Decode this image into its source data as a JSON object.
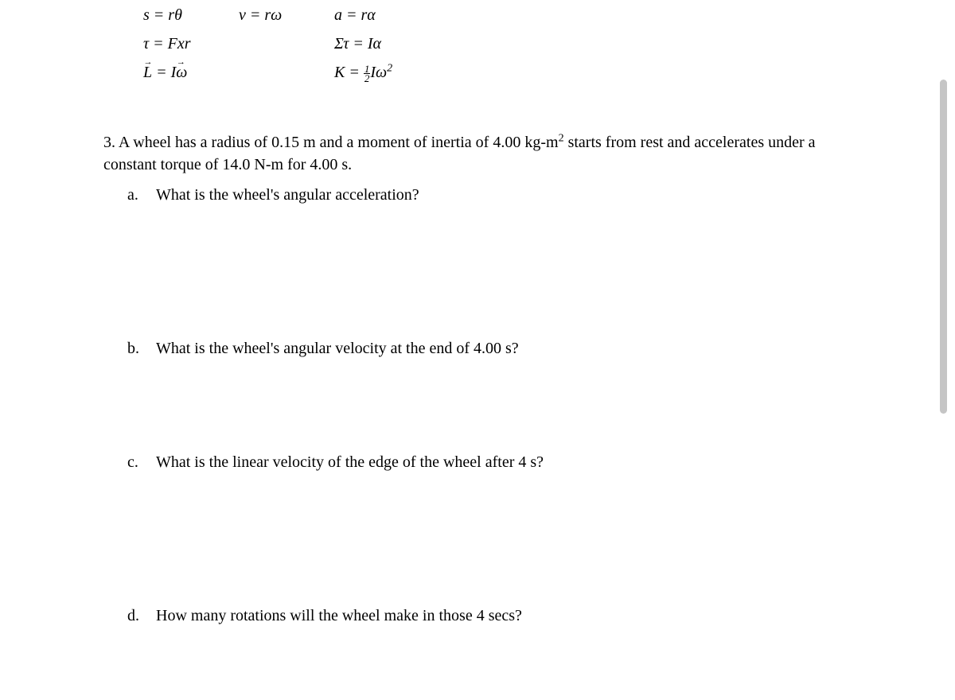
{
  "formulas": {
    "row1": {
      "col1": "s = rθ",
      "col2": "v = rω",
      "col3": "a = rα"
    },
    "row2": {
      "col1": "τ = Fxr",
      "col3": "Στ = Iα"
    },
    "row3": {
      "col1_prefix": "L",
      "col1_suffix": " = I",
      "col1_omega": "ω",
      "col3_prefix": "K = ",
      "col3_frac_num": "1",
      "col3_frac_den": "2",
      "col3_I": "I",
      "col3_omega": "ω",
      "col3_exp": "2"
    }
  },
  "question": {
    "number": "3.",
    "text_part1": "A wheel has a radius of 0.15 m and a moment of inertia of 4.00 kg-m",
    "sup": "2",
    "text_part2": " starts from rest and accelerates under a constant torque of 14.0 N-m for 4.00 s."
  },
  "parts": {
    "a": {
      "label": "a.",
      "text": "What is the wheel's angular acceleration?"
    },
    "b": {
      "label": "b.",
      "text": "What is the wheel's angular velocity at the end of 4.00 s?"
    },
    "c": {
      "label": "c.",
      "text": "What is the linear velocity of the edge of the wheel after 4 s?"
    },
    "d": {
      "label": "d.",
      "text": "How many rotations will the wheel make in those 4 secs?"
    }
  },
  "styling": {
    "font_family": "Times New Roman",
    "font_size_pt": 15,
    "text_color": "#000000",
    "background_color": "#ffffff",
    "scrollbar_color": "#c5c5c5"
  }
}
